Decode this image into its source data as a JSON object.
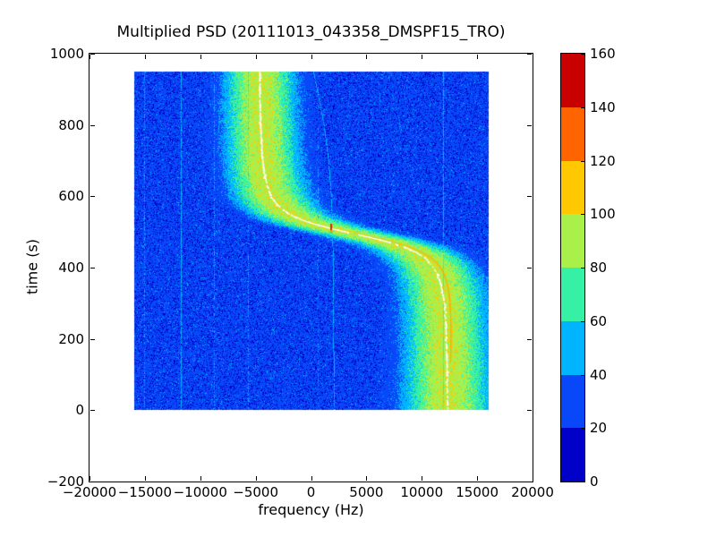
{
  "chart_data": {
    "type": "heatmap",
    "title": "Multiplied PSD (20111013_043358_DMSPF15_TRO)",
    "xlabel": "frequency (Hz)",
    "ylabel": "time (s)",
    "xlim": [
      -20000,
      20000
    ],
    "ylim": [
      -200,
      1000
    ],
    "grid": false,
    "xticks": {
      "values": [
        -20000,
        -15000,
        -10000,
        -5000,
        0,
        5000,
        10000,
        15000,
        20000
      ],
      "labels": [
        "−20000",
        "−15000",
        "−10000",
        "−5000",
        "0",
        "5000",
        "10000",
        "15000",
        "20000"
      ]
    },
    "yticks": {
      "values": [
        1000,
        800,
        600,
        400,
        200,
        0,
        -200
      ],
      "labels": [
        "1000",
        "800",
        "600",
        "400",
        "200",
        "0",
        "−200"
      ]
    },
    "data_extent": {
      "freq_hz": [
        -16000,
        16000
      ],
      "time_s": [
        0,
        950
      ]
    },
    "colormap": {
      "name": "jet-discrete-8",
      "levels": [
        0,
        20,
        40,
        60,
        80,
        100,
        120,
        140,
        160
      ],
      "colors": [
        "#0000c8",
        "#0848f8",
        "#00b4ff",
        "#35f0a5",
        "#aaf04b",
        "#ffc800",
        "#ff6400",
        "#c80000"
      ],
      "over_color": "#ffffff"
    },
    "colorbar": {
      "tick_values": [
        0,
        20,
        40,
        60,
        80,
        100,
        120,
        140,
        160
      ],
      "tick_labels": [
        "0",
        "20",
        "40",
        "60",
        "80",
        "100",
        "120",
        "140",
        "160"
      ]
    },
    "doppler_track": {
      "f_mid_hz": 3850,
      "amplitude_hz": 8550,
      "t_mid_s": 495,
      "knee_width_s": 60,
      "f_at_t0_hz": 12400,
      "f_at_t950_hz": -4700
    },
    "band_profile": {
      "peak_value": 97,
      "sigma_top_hz": 2600,
      "sigma_bottom_hz": 3300
    },
    "background_noise": {
      "mean": 26.5,
      "sd": 7.5
    },
    "carrier_line_color": "#ffffff",
    "hot_spot": {
      "t_s": 510,
      "f_hz": 1840,
      "colors": [
        "#dd2a00",
        "#ff9100"
      ]
    },
    "secondary_trace": {
      "color": "#ffaf0a",
      "t_range_s": [
        135,
        500
      ],
      "offset_hz_min": 280,
      "offset_hz_per_s": 1.28
    },
    "interference_lines": [
      {
        "type": "vertical",
        "f_hz": -15100,
        "value": 44,
        "gap": 0.25
      },
      {
        "type": "vertical",
        "f_hz": -11800,
        "value": 52,
        "gap": 0.08
      },
      {
        "type": "vertical",
        "f_hz": -8750,
        "value": 44,
        "gap": 0.35
      },
      {
        "type": "vertical",
        "f_hz": -5700,
        "value": 44,
        "gap": 0.3
      },
      {
        "type": "vertical",
        "f_hz": 600,
        "value": 40,
        "gap": 0.45
      },
      {
        "type": "vertical",
        "f_hz": 11950,
        "value": 50,
        "gap": 0.12
      },
      {
        "type": "curve",
        "value": 50,
        "gap": 0.1,
        "points_t_f": [
          [
            950,
            200
          ],
          [
            800,
            1150
          ],
          [
            700,
            1560
          ],
          [
            600,
            1800
          ],
          [
            510,
            1915
          ],
          [
            400,
            1975
          ],
          [
            200,
            2020
          ],
          [
            0,
            2050
          ]
        ]
      },
      {
        "type": "curve",
        "value": 38,
        "gap": 0.5,
        "points_t_f": [
          [
            950,
            6900
          ],
          [
            555,
            9900
          ]
        ]
      }
    ]
  }
}
